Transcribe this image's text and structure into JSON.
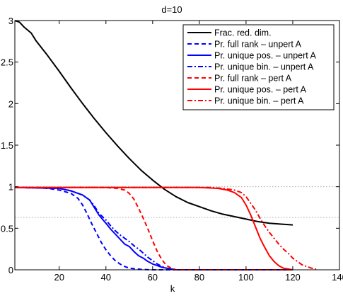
{
  "chart_data": {
    "type": "line",
    "title": "d=10",
    "xlabel": "k",
    "ylabel": "",
    "xlim": [
      1,
      140
    ],
    "ylim": [
      0,
      3
    ],
    "xticks": [
      "20",
      "40",
      "60",
      "80",
      "100",
      "120",
      "140"
    ],
    "yticks": [
      "0",
      "0.5",
      "1",
      "1.5",
      "2",
      "2.5",
      "3"
    ],
    "xtick_values": [
      20,
      40,
      60,
      80,
      100,
      120,
      140
    ],
    "ytick_values": [
      0,
      0.5,
      1,
      1.5,
      2,
      2.5,
      3
    ],
    "grid": false,
    "legend_position": "top-right",
    "reference_lines": [
      {
        "type": "horizontal",
        "y": 0.63,
        "style": "dotted",
        "color": "#aaaaaa"
      },
      {
        "type": "horizontal",
        "y": 1.0,
        "style": "dotted",
        "color": "#aaaaaa"
      }
    ],
    "series": [
      {
        "name": "Frac. red. dim.",
        "color": "#000000",
        "dash": "solid",
        "points": [
          [
            1,
            3.0
          ],
          [
            3,
            2.98
          ],
          [
            5,
            2.92
          ],
          [
            8,
            2.85
          ],
          [
            10,
            2.76
          ],
          [
            15,
            2.58
          ],
          [
            20,
            2.39
          ],
          [
            25,
            2.19
          ],
          [
            30,
            2.0
          ],
          [
            35,
            1.82
          ],
          [
            40,
            1.65
          ],
          [
            45,
            1.49
          ],
          [
            50,
            1.34
          ],
          [
            55,
            1.2
          ],
          [
            60,
            1.08
          ],
          [
            65,
            0.97
          ],
          [
            70,
            0.88
          ],
          [
            75,
            0.81
          ],
          [
            80,
            0.76
          ],
          [
            85,
            0.71
          ],
          [
            90,
            0.67
          ],
          [
            95,
            0.64
          ],
          [
            100,
            0.61
          ],
          [
            105,
            0.58
          ],
          [
            110,
            0.56
          ],
          [
            115,
            0.55
          ],
          [
            120,
            0.54
          ]
        ]
      },
      {
        "name": "Pr. full rank – unpert A",
        "color": "#0000ff",
        "dash": "dashed",
        "points": [
          [
            1,
            0.99
          ],
          [
            10,
            0.99
          ],
          [
            15,
            0.98
          ],
          [
            20,
            0.96
          ],
          [
            25,
            0.92
          ],
          [
            28,
            0.86
          ],
          [
            30,
            0.78
          ],
          [
            32,
            0.67
          ],
          [
            34,
            0.55
          ],
          [
            36,
            0.44
          ],
          [
            38,
            0.33
          ],
          [
            40,
            0.24
          ],
          [
            42,
            0.17
          ],
          [
            44,
            0.11
          ],
          [
            46,
            0.07
          ],
          [
            48,
            0.04
          ],
          [
            50,
            0.02
          ],
          [
            55,
            0.005
          ],
          [
            60,
            0.0
          ],
          [
            120,
            0.0
          ]
        ]
      },
      {
        "name": "Pr. unique pos. – unpert A",
        "color": "#0000ff",
        "dash": "solid",
        "points": [
          [
            1,
            0.99
          ],
          [
            20,
            0.98
          ],
          [
            25,
            0.95
          ],
          [
            30,
            0.9
          ],
          [
            33,
            0.84
          ],
          [
            35,
            0.75
          ],
          [
            37,
            0.66
          ],
          [
            40,
            0.56
          ],
          [
            42,
            0.49
          ],
          [
            44,
            0.43
          ],
          [
            46,
            0.37
          ],
          [
            48,
            0.31
          ],
          [
            50,
            0.28
          ],
          [
            52,
            0.22
          ],
          [
            54,
            0.17
          ],
          [
            56,
            0.14
          ],
          [
            58,
            0.1
          ],
          [
            60,
            0.07
          ],
          [
            62,
            0.05
          ],
          [
            64,
            0.03
          ],
          [
            66,
            0.02
          ],
          [
            68,
            0.01
          ],
          [
            70,
            0.0
          ],
          [
            120,
            0.0
          ]
        ]
      },
      {
        "name": "Pr. unique bin. – unpert A",
        "color": "#0000ff",
        "dash": "dashdot",
        "points": [
          [
            1,
            0.99
          ],
          [
            20,
            0.98
          ],
          [
            25,
            0.95
          ],
          [
            30,
            0.9
          ],
          [
            33,
            0.84
          ],
          [
            35,
            0.77
          ],
          [
            37,
            0.68
          ],
          [
            40,
            0.6
          ],
          [
            42,
            0.53
          ],
          [
            44,
            0.47
          ],
          [
            46,
            0.42
          ],
          [
            48,
            0.38
          ],
          [
            50,
            0.34
          ],
          [
            52,
            0.29
          ],
          [
            54,
            0.25
          ],
          [
            56,
            0.2
          ],
          [
            58,
            0.15
          ],
          [
            60,
            0.11
          ],
          [
            62,
            0.07
          ],
          [
            64,
            0.04
          ],
          [
            66,
            0.02
          ],
          [
            68,
            0.01
          ],
          [
            70,
            0.0
          ],
          [
            120,
            0.0
          ]
        ]
      },
      {
        "name": "Pr. full rank – pert A",
        "color": "#ff0000",
        "dash": "dashed",
        "points": [
          [
            1,
            0.99
          ],
          [
            40,
            0.99
          ],
          [
            45,
            0.98
          ],
          [
            48,
            0.96
          ],
          [
            50,
            0.92
          ],
          [
            52,
            0.85
          ],
          [
            54,
            0.74
          ],
          [
            56,
            0.62
          ],
          [
            58,
            0.49
          ],
          [
            60,
            0.35
          ],
          [
            62,
            0.22
          ],
          [
            64,
            0.12
          ],
          [
            66,
            0.05
          ],
          [
            68,
            0.02
          ],
          [
            70,
            0.0
          ],
          [
            120,
            0.0
          ]
        ]
      },
      {
        "name": "Pr. unique pos. – pert A",
        "color": "#ff0000",
        "dash": "solid",
        "points": [
          [
            1,
            0.99
          ],
          [
            80,
            0.99
          ],
          [
            88,
            0.98
          ],
          [
            92,
            0.96
          ],
          [
            95,
            0.93
          ],
          [
            98,
            0.87
          ],
          [
            100,
            0.78
          ],
          [
            102,
            0.66
          ],
          [
            104,
            0.52
          ],
          [
            106,
            0.38
          ],
          [
            108,
            0.27
          ],
          [
            110,
            0.17
          ],
          [
            112,
            0.1
          ],
          [
            114,
            0.05
          ],
          [
            116,
            0.02
          ],
          [
            118,
            0.01
          ],
          [
            120,
            0.0
          ]
        ]
      },
      {
        "name": "Pr. unique bin. – pert A",
        "color": "#ff0000",
        "dash": "dashdot",
        "points": [
          [
            1,
            0.99
          ],
          [
            85,
            0.99
          ],
          [
            90,
            0.98
          ],
          [
            95,
            0.96
          ],
          [
            98,
            0.93
          ],
          [
            100,
            0.88
          ],
          [
            102,
            0.8
          ],
          [
            104,
            0.72
          ],
          [
            106,
            0.62
          ],
          [
            108,
            0.53
          ],
          [
            110,
            0.45
          ],
          [
            112,
            0.38
          ],
          [
            114,
            0.31
          ],
          [
            116,
            0.25
          ],
          [
            118,
            0.2
          ],
          [
            120,
            0.14
          ],
          [
            122,
            0.1
          ],
          [
            124,
            0.06
          ],
          [
            126,
            0.04
          ],
          [
            128,
            0.02
          ],
          [
            130,
            0.01
          ]
        ]
      }
    ]
  }
}
